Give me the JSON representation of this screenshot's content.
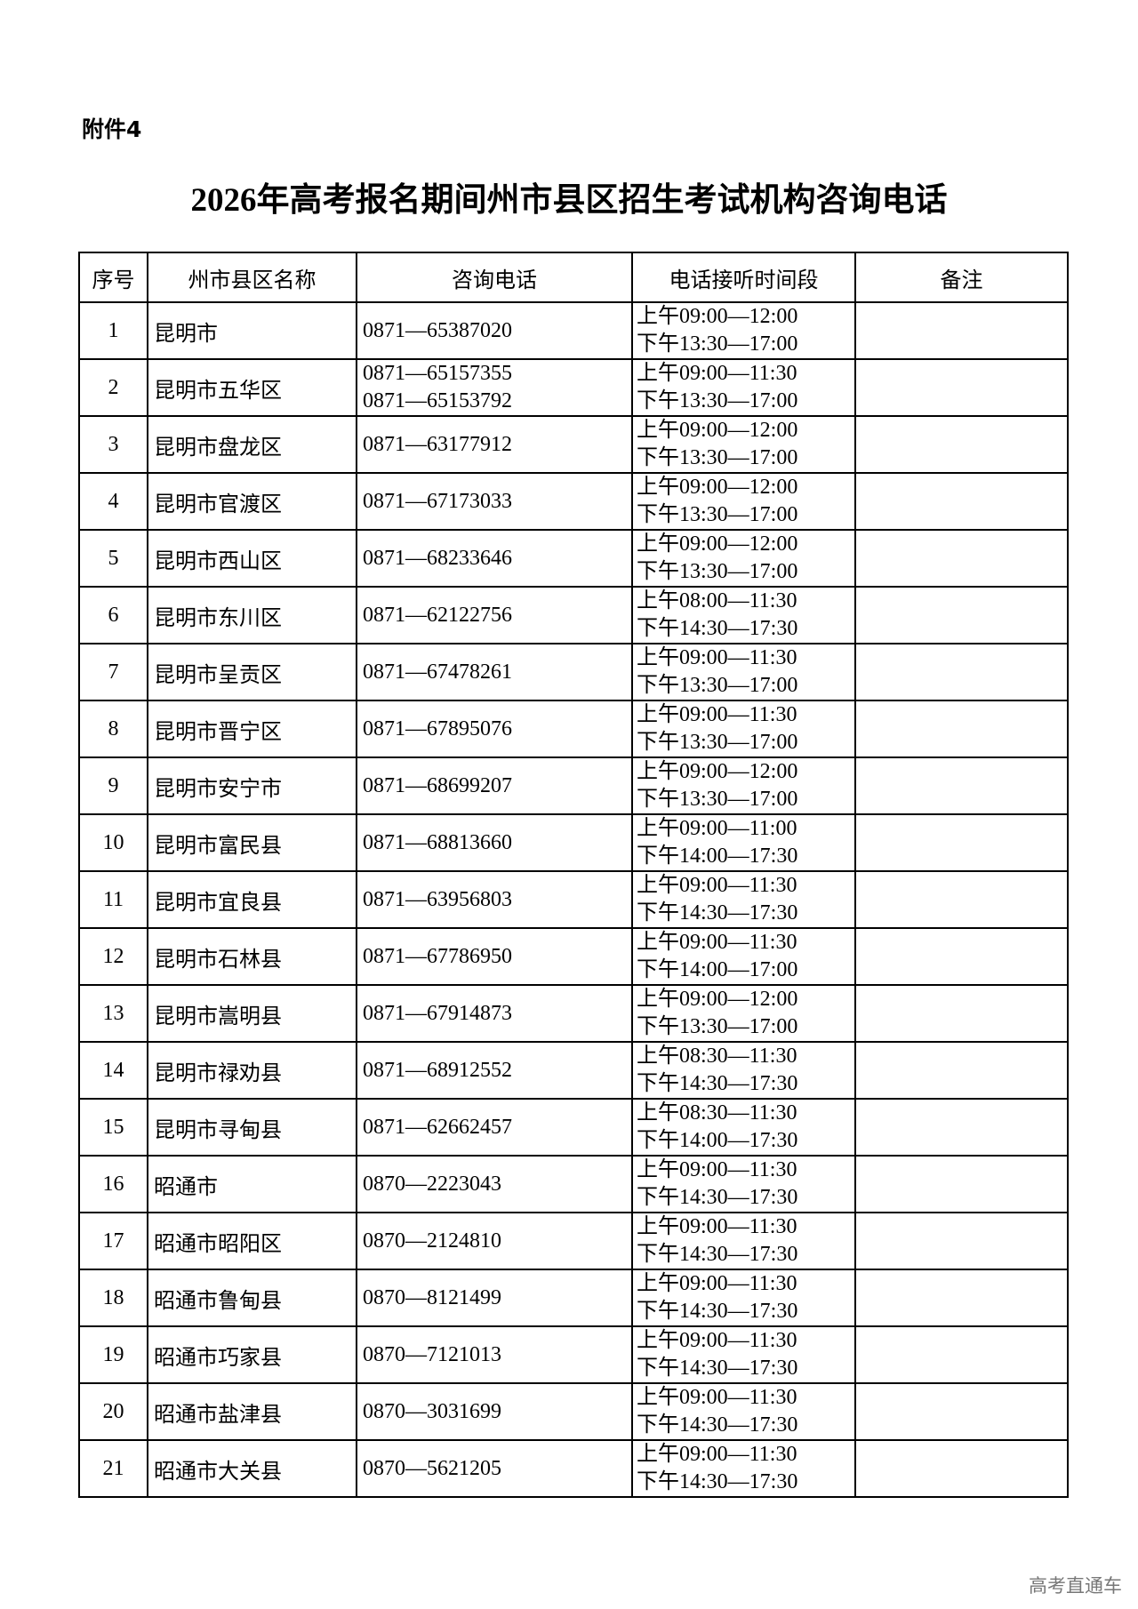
{
  "attachment_label": "附件4",
  "title": "2026年高考报名期间州市县区招生考试机构咨询电话",
  "table": {
    "headers": [
      "序号",
      "州市县区名称",
      "咨询电话",
      "电话接听时间段",
      "备注"
    ],
    "rows": [
      {
        "no": "1",
        "name": "昆明市",
        "phones": [
          "0871—65387020"
        ],
        "am": "上午09:00—12:00",
        "pm": "下午13:30—17:00",
        "note": ""
      },
      {
        "no": "2",
        "name": "昆明市五华区",
        "phones": [
          "0871—65157355",
          "0871—65153792"
        ],
        "am": "上午09:00—11:30",
        "pm": "下午13:30—17:00",
        "note": ""
      },
      {
        "no": "3",
        "name": "昆明市盘龙区",
        "phones": [
          "0871—63177912"
        ],
        "am": "上午09:00—12:00",
        "pm": "下午13:30—17:00",
        "note": ""
      },
      {
        "no": "4",
        "name": "昆明市官渡区",
        "phones": [
          "0871—67173033"
        ],
        "am": "上午09:00—12:00",
        "pm": "下午13:30—17:00",
        "note": ""
      },
      {
        "no": "5",
        "name": "昆明市西山区",
        "phones": [
          "0871—68233646"
        ],
        "am": "上午09:00—12:00",
        "pm": "下午13:30—17:00",
        "note": ""
      },
      {
        "no": "6",
        "name": "昆明市东川区",
        "phones": [
          "0871—62122756"
        ],
        "am": "上午08:00—11:30",
        "pm": "下午14:30—17:30",
        "note": ""
      },
      {
        "no": "7",
        "name": "昆明市呈贡区",
        "phones": [
          "0871—67478261"
        ],
        "am": "上午09:00—11:30",
        "pm": "下午13:30—17:00",
        "note": ""
      },
      {
        "no": "8",
        "name": "昆明市晋宁区",
        "phones": [
          "0871—67895076"
        ],
        "am": "上午09:00—11:30",
        "pm": "下午13:30—17:00",
        "note": ""
      },
      {
        "no": "9",
        "name": "昆明市安宁市",
        "phones": [
          "0871—68699207"
        ],
        "am": "上午09:00—12:00",
        "pm": "下午13:30—17:00",
        "note": ""
      },
      {
        "no": "10",
        "name": "昆明市富民县",
        "phones": [
          "0871—68813660"
        ],
        "am": "上午09:00—11:00",
        "pm": "下午14:00—17:30",
        "note": ""
      },
      {
        "no": "11",
        "name": "昆明市宜良县",
        "phones": [
          "0871—63956803"
        ],
        "am": "上午09:00—11:30",
        "pm": "下午14:30—17:30",
        "note": ""
      },
      {
        "no": "12",
        "name": "昆明市石林县",
        "phones": [
          "0871—67786950"
        ],
        "am": "上午09:00—11:30",
        "pm": "下午14:00—17:00",
        "note": ""
      },
      {
        "no": "13",
        "name": "昆明市嵩明县",
        "phones": [
          "0871—67914873"
        ],
        "am": "上午09:00—12:00",
        "pm": "下午13:30—17:00",
        "note": ""
      },
      {
        "no": "14",
        "name": "昆明市禄劝县",
        "phones": [
          "0871—68912552"
        ],
        "am": "上午08:30—11:30",
        "pm": "下午14:30—17:30",
        "note": ""
      },
      {
        "no": "15",
        "name": "昆明市寻甸县",
        "phones": [
          "0871—62662457"
        ],
        "am": "上午08:30—11:30",
        "pm": "下午14:00—17:30",
        "note": ""
      },
      {
        "no": "16",
        "name": "昭通市",
        "phones": [
          "0870—2223043"
        ],
        "am": "上午09:00—11:30",
        "pm": "下午14:30—17:30",
        "note": ""
      },
      {
        "no": "17",
        "name": "昭通市昭阳区",
        "phones": [
          "0870—2124810"
        ],
        "am": "上午09:00—11:30",
        "pm": "下午14:30—17:30",
        "note": ""
      },
      {
        "no": "18",
        "name": "昭通市鲁甸县",
        "phones": [
          "0870—8121499"
        ],
        "am": "上午09:00—11:30",
        "pm": "下午14:30—17:30",
        "note": ""
      },
      {
        "no": "19",
        "name": "昭通市巧家县",
        "phones": [
          "0870—7121013"
        ],
        "am": "上午09:00—11:30",
        "pm": "下午14:30—17:30",
        "note": ""
      },
      {
        "no": "20",
        "name": "昭通市盐津县",
        "phones": [
          "0870—3031699"
        ],
        "am": "上午09:00—11:30",
        "pm": "下午14:30—17:30",
        "note": ""
      },
      {
        "no": "21",
        "name": "昭通市大关县",
        "phones": [
          "0870—5621205"
        ],
        "am": "上午09:00—11:30",
        "pm": "下午14:30—17:30",
        "note": ""
      }
    ]
  },
  "watermark": "高考直通车"
}
